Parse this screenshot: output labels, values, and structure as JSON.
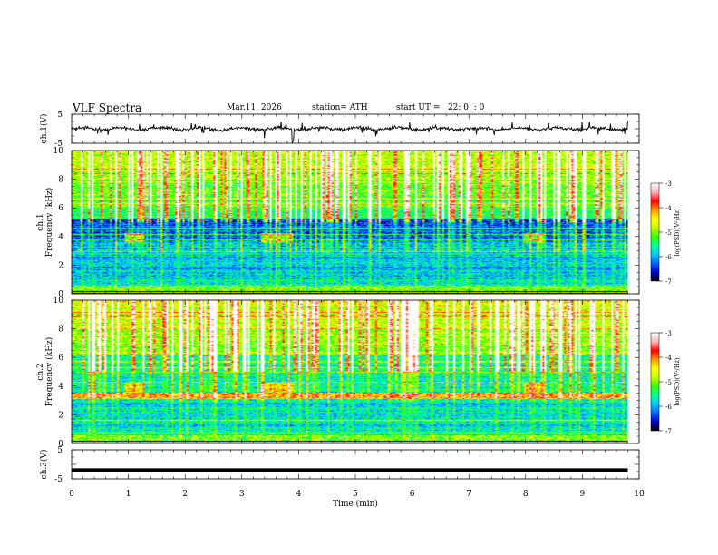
{
  "header": {
    "title": "VLF Spectra",
    "date": "Mar.11, 2026",
    "station": "station= ATH",
    "start_ut": "start UT =   22: 0  : 0"
  },
  "chart_data": [
    {
      "id": "ch1-waveform",
      "type": "line",
      "ylabel": "ch.1(V)",
      "ylim": [
        -5,
        5
      ],
      "yticks": [
        "5",
        "-5"
      ],
      "xlim": [
        0,
        10
      ],
      "baseline": 0,
      "trace_color": "#000000"
    },
    {
      "id": "ch1-spectrogram",
      "type": "heatmap",
      "ylabel_channel": "ch.1",
      "ylabel": "Frequency  (kHz)",
      "ylim": [
        0,
        10
      ],
      "yticks": [
        "0",
        "2",
        "4",
        "6",
        "8",
        "10"
      ],
      "xlim": [
        0,
        10
      ],
      "data_xmax": 9.8,
      "colorbar": {
        "label": "log(PSD)(V²/Hz)",
        "range": [
          -7,
          -3
        ],
        "ticks": [
          "-3",
          "-4",
          "-5",
          "-6",
          "-7"
        ],
        "colors": [
          "#000000",
          "#0000c8",
          "#0064ff",
          "#00c8ff",
          "#00ff96",
          "#32ff00",
          "#c8ff00",
          "#ffff00",
          "#ff9600",
          "#ff0000",
          "#ffb4b4",
          "#ffffff"
        ]
      },
      "features": {
        "blue_band_khz": [
          3.7,
          5.2
        ],
        "patches": [
          {
            "t": [
              0.9,
              1.25
            ],
            "f": [
              3.6,
              4.3
            ]
          },
          {
            "t": [
              3.3,
              3.9
            ],
            "f": [
              3.6,
              4.3
            ]
          },
          {
            "t": [
              7.95,
              8.3
            ],
            "f": [
              3.6,
              4.3
            ]
          }
        ]
      }
    },
    {
      "id": "ch2-spectrogram",
      "type": "heatmap",
      "ylabel_channel": "ch.2",
      "ylabel": "Frequency  (kHz)",
      "ylim": [
        0,
        10
      ],
      "yticks": [
        "0",
        "2",
        "4",
        "6",
        "8",
        "10"
      ],
      "xlim": [
        0,
        10
      ],
      "data_xmax": 9.8,
      "colorbar": {
        "label": "log(PSD)(V²/Hz)",
        "range": [
          -7,
          -3
        ],
        "ticks": [
          "-3",
          "-4",
          "-5",
          "-6",
          "-7"
        ]
      },
      "features": {
        "red_band_khz": [
          3.2,
          3.6
        ],
        "patches": [
          {
            "t": [
              0.9,
              1.25
            ],
            "f": [
              3.6,
              4.3
            ]
          },
          {
            "t": [
              3.3,
              3.9
            ],
            "f": [
              3.6,
              4.3
            ]
          },
          {
            "t": [
              7.95,
              8.3
            ],
            "f": [
              3.6,
              4.3
            ]
          }
        ]
      }
    },
    {
      "id": "ch3-waveform",
      "type": "line",
      "ylabel": "ch.3(V)",
      "ylim": [
        -5,
        5
      ],
      "yticks": [
        "5",
        "-5"
      ],
      "xlim": [
        0,
        10
      ],
      "xticks": [
        "0",
        "1",
        "2",
        "3",
        "4",
        "5",
        "6",
        "7",
        "8",
        "9",
        "10"
      ],
      "xlabel": "Time  (min)",
      "constant_value": -2,
      "trace_color": "#000000"
    }
  ]
}
